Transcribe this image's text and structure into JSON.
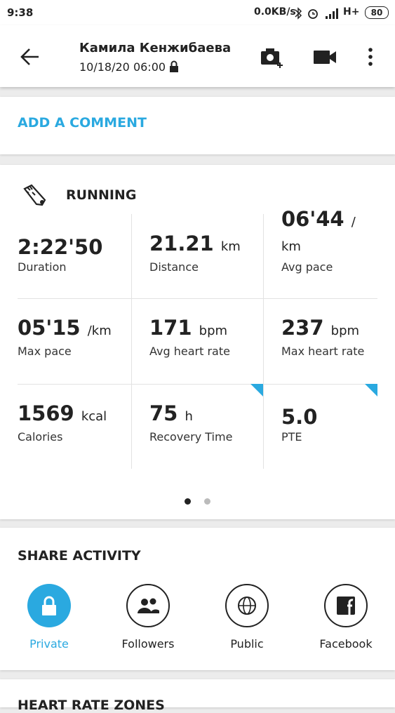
{
  "status_bar": {
    "time": "9:38",
    "network": "0.0KB/s",
    "carrier": "H+",
    "battery": "80"
  },
  "header": {
    "name": "Камила Кенжибаева",
    "datetime": "10/18/20 06:00"
  },
  "comment": {
    "label": "ADD A COMMENT"
  },
  "activity": {
    "title": "RUNNING",
    "stats": [
      {
        "value": "2:22'50",
        "label": "Duration"
      },
      {
        "value": "21.21",
        "unit": "km",
        "label": "Distance"
      },
      {
        "value": "06'44",
        "unit": "/ km",
        "label": "Avg pace"
      },
      {
        "value": "05'15",
        "unit": "/km",
        "label": "Max pace"
      },
      {
        "value": "171",
        "unit": "bpm",
        "label": "Avg heart rate"
      },
      {
        "value": "237",
        "unit": "bpm",
        "label": "Max heart rate"
      },
      {
        "value": "1569",
        "unit": "kcal",
        "label": "Calories"
      },
      {
        "value": "75",
        "unit": "h",
        "label": "Recovery Time"
      },
      {
        "value": "5.0",
        "label": "PTE"
      }
    ]
  },
  "share": {
    "title": "SHARE ACTIVITY",
    "options": [
      "Private",
      "Followers",
      "Public",
      "Facebook"
    ]
  },
  "next_section": {
    "title": "HEART RATE ZONES"
  }
}
